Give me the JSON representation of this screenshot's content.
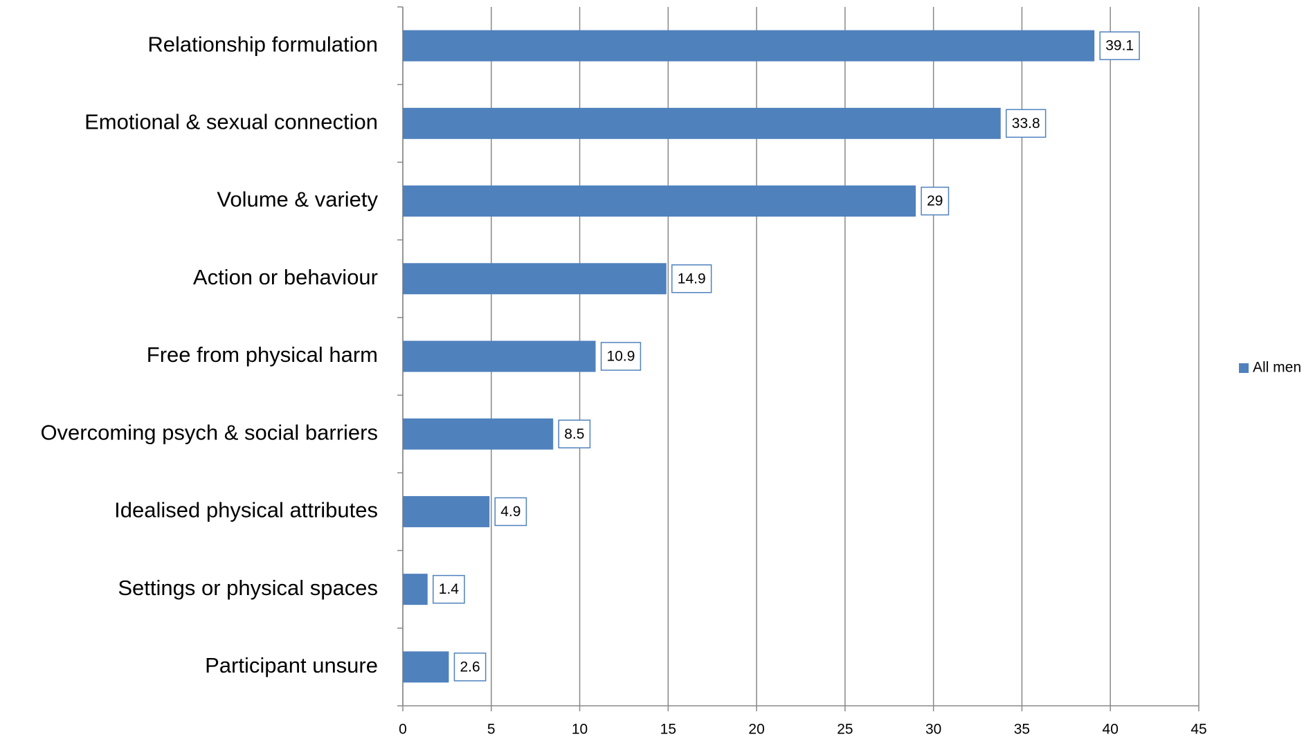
{
  "chart_data": {
    "type": "bar",
    "orientation": "horizontal",
    "categories": [
      "Relationship formulation",
      "Emotional & sexual connection",
      "Volume & variety",
      "Action or behaviour",
      "Free from physical harm",
      "Overcoming psych & social barriers",
      "Idealised physical attributes",
      "Settings or physical spaces",
      "Participant unsure"
    ],
    "series": [
      {
        "name": "All men",
        "color": "#4f81bd",
        "values": [
          39.1,
          33.8,
          29,
          14.9,
          10.9,
          8.5,
          4.9,
          1.4,
          2.6
        ]
      }
    ],
    "xlim": [
      0,
      45
    ],
    "xticks": [
      0,
      5,
      10,
      15,
      20,
      25,
      30,
      35,
      40,
      45
    ],
    "grid": true,
    "legend": "right",
    "data_labels": true
  }
}
